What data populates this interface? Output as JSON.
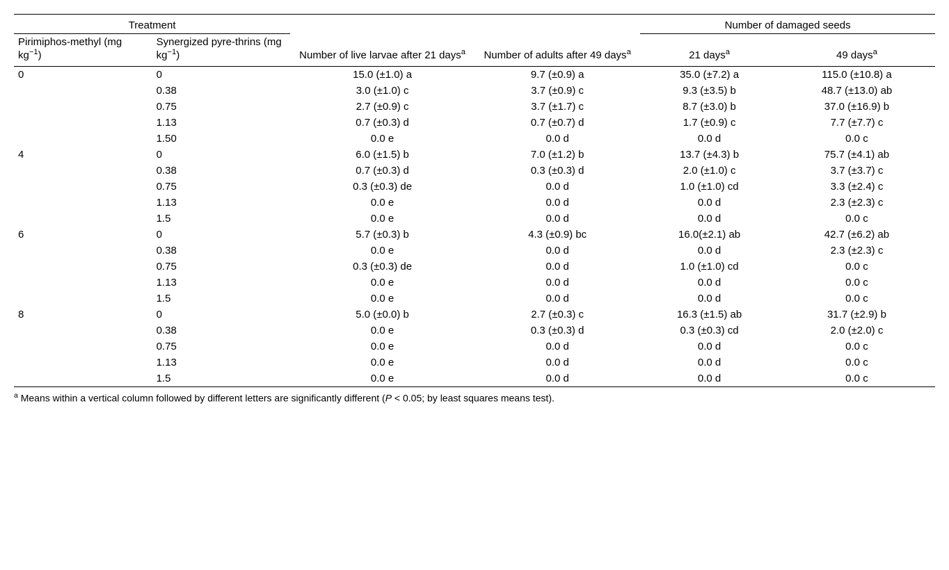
{
  "header": {
    "treatment_group": "Treatment",
    "col1": "Pirimiphos-methyl (mg kg",
    "col1_sup": "−1",
    "col1_close": ")",
    "col2": "Synergized pyre-thrins (mg kg",
    "col2_sup": "−1",
    "col2_close": ")",
    "col3": "Number of live larvae after 21 days",
    "col4": "Number of adults after 49 days",
    "damaged_group": "Number of damaged seeds",
    "col5": "21 days",
    "col6": "49 days",
    "sup_a": "a"
  },
  "groups": [
    {
      "pm": "0",
      "rows": [
        {
          "sp": "0",
          "c3": "15.0 (±1.0) a",
          "c4": "9.7 (±0.9) a",
          "c5": "35.0 (±7.2) a",
          "c6": "115.0 (±10.8) a"
        },
        {
          "sp": "0.38",
          "c3": "3.0 (±1.0) c",
          "c4": "3.7 (±0.9) c",
          "c5": "9.3 (±3.5) b",
          "c6": "48.7 (±13.0) ab"
        },
        {
          "sp": "0.75",
          "c3": "2.7 (±0.9) c",
          "c4": "3.7 (±1.7) c",
          "c5": "8.7 (±3.0) b",
          "c6": "37.0 (±16.9) b"
        },
        {
          "sp": "1.13",
          "c3": "0.7 (±0.3) d",
          "c4": "0.7 (±0.7) d",
          "c5": "1.7 (±0.9) c",
          "c6": "7.7 (±7.7) c"
        },
        {
          "sp": "1.50",
          "c3": "0.0 e",
          "c4": "0.0 d",
          "c5": "0.0 d",
          "c6": "0.0 c"
        }
      ]
    },
    {
      "pm": "4",
      "rows": [
        {
          "sp": "0",
          "c3": "6.0 (±1.5) b",
          "c4": "7.0 (±1.2) b",
          "c5": "13.7 (±4.3) b",
          "c6": "75.7 (±4.1) ab"
        },
        {
          "sp": "0.38",
          "c3": "0.7 (±0.3) d",
          "c4": "0.3 (±0.3) d",
          "c5": "2.0 (±1.0) c",
          "c6": "3.7 (±3.7) c"
        },
        {
          "sp": "0.75",
          "c3": "0.3 (±0.3) de",
          "c4": "0.0 d",
          "c5": "1.0 (±1.0) cd",
          "c6": "3.3 (±2.4) c"
        },
        {
          "sp": "1.13",
          "c3": "0.0 e",
          "c4": "0.0 d",
          "c5": "0.0 d",
          "c6": "2.3 (±2.3) c"
        },
        {
          "sp": "1.5",
          "c3": "0.0 e",
          "c4": "0.0 d",
          "c5": "0.0 d",
          "c6": "0.0 c"
        }
      ]
    },
    {
      "pm": "6",
      "rows": [
        {
          "sp": "0",
          "c3": "5.7 (±0.3) b",
          "c4": "4.3 (±0.9) bc",
          "c5": "16.0(±2.1) ab",
          "c6": "42.7 (±6.2) ab"
        },
        {
          "sp": "0.38",
          "c3": "0.0 e",
          "c4": "0.0 d",
          "c5": "0.0 d",
          "c6": "2.3 (±2.3) c"
        },
        {
          "sp": "0.75",
          "c3": "0.3 (±0.3) de",
          "c4": "0.0 d",
          "c5": "1.0 (±1.0) cd",
          "c6": "0.0 c"
        },
        {
          "sp": "1.13",
          "c3": "0.0 e",
          "c4": "0.0 d",
          "c5": "0.0 d",
          "c6": "0.0 c"
        },
        {
          "sp": "1.5",
          "c3": "0.0 e",
          "c4": "0.0 d",
          "c5": "0.0 d",
          "c6": "0.0 c"
        }
      ]
    },
    {
      "pm": "8",
      "rows": [
        {
          "sp": "0",
          "c3": "5.0 (±0.0) b",
          "c4": "2.7 (±0.3) c",
          "c5": "16.3 (±1.5) ab",
          "c6": "31.7 (±2.9) b"
        },
        {
          "sp": "0.38",
          "c3": "0.0 e",
          "c4": "0.3 (±0.3) d",
          "c5": "0.3 (±0.3) cd",
          "c6": "2.0 (±2.0) c"
        },
        {
          "sp": "0.75",
          "c3": "0.0 e",
          "c4": "0.0 d",
          "c5": "0.0 d",
          "c6": "0.0 c"
        },
        {
          "sp": "1.13",
          "c3": "0.0 e",
          "c4": "0.0 d",
          "c5": "0.0 d",
          "c6": "0.0 c"
        },
        {
          "sp": "1.5",
          "c3": "0.0 e",
          "c4": "0.0 d",
          "c5": "0.0 d",
          "c6": "0.0 c"
        }
      ]
    }
  ],
  "footnote": {
    "sup": "a",
    "text_before": " Means within a vertical column followed by different letters are significantly different (",
    "p_label": "P",
    "text_after": " < 0.05; by least squares means test)."
  }
}
